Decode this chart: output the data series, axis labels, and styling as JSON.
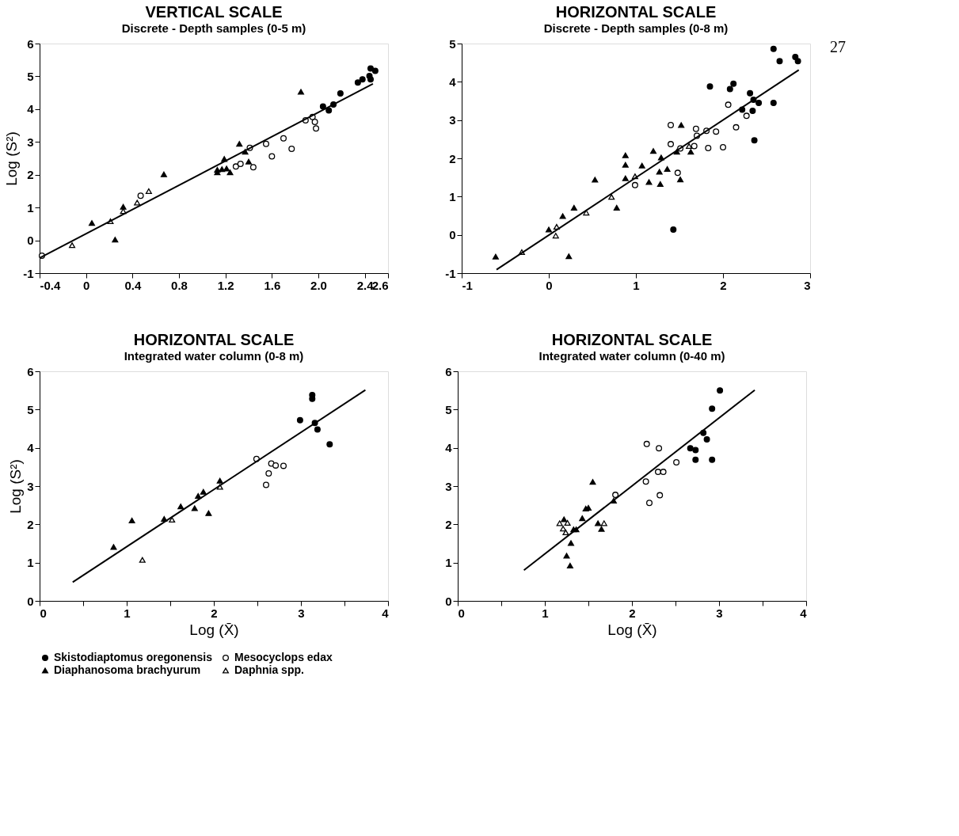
{
  "chart_data": [
    {
      "type": "scatter",
      "title": "VERTICAL SCALE",
      "subtitle": "Discrete - Depth samples (0-5 m)",
      "ylabel": "Log (S²)",
      "legend": "bottom",
      "xlim": [
        -0.4,
        2.6
      ],
      "xticks": [
        -0.4,
        0,
        0.4,
        0.8,
        1.2,
        1.6,
        {
          "value": 2,
          "label": "2.0"
        },
        2.4,
        2.6
      ],
      "ylim": [
        -1,
        6
      ],
      "yticks": [
        -1,
        0,
        1,
        2,
        3,
        4,
        5,
        6
      ],
      "series": [
        {
          "name": "Skistodiaptomus oregonensis",
          "color": "#000000",
          "marker": "circle",
          "x": [
            2.04,
            2.09,
            2.13,
            2.19,
            2.34,
            2.38,
            2.44,
            2.45,
            2.45,
            2.49
          ],
          "values": [
            4.08,
            3.96,
            4.14,
            4.48,
            4.81,
            4.91,
            5.01,
            4.91,
            5.24,
            5.17
          ]
        },
        {
          "name": "Mesocyclops edax",
          "color": "#ffffff",
          "marker": "circle",
          "x": [
            -0.38,
            1.89,
            1.95,
            1.97,
            1.98,
            1.41,
            1.44,
            1.29,
            1.33,
            1.55,
            1.6,
            1.7,
            1.77,
            0.47
          ],
          "values": [
            -0.47,
            3.66,
            3.76,
            3.61,
            3.41,
            2.82,
            2.23,
            2.25,
            2.33,
            2.94,
            2.56,
            3.11,
            2.79,
            1.36
          ]
        },
        {
          "name": "Diaphanosoma brachyurum",
          "color": "#000000",
          "marker": "triangle",
          "x": [
            0.05,
            0.25,
            0.67,
            1.13,
            1.13,
            1.19,
            1.17,
            1.21,
            1.24,
            1.32,
            1.4,
            1.37,
            1.85,
            0.32
          ],
          "values": [
            0.53,
            0.02,
            2.01,
            2.07,
            2.15,
            2.48,
            2.17,
            2.19,
            2.07,
            2.94,
            2.4,
            2.7,
            4.53,
            1.02
          ]
        },
        {
          "name": "Daphnia spp.",
          "color": "#ffffff",
          "marker": "triangle",
          "x": [
            -0.12,
            0.21,
            0.32,
            0.44,
            0.54
          ],
          "values": [
            -0.15,
            0.58,
            0.89,
            1.15,
            1.5
          ]
        },
        {
          "type": "line",
          "color": "#000000",
          "x": [
            -0.4,
            2.47
          ],
          "values": [
            -0.54,
            4.77
          ]
        }
      ]
    },
    {
      "type": "scatter",
      "title": "HORIZONTAL SCALE",
      "subtitle": "Discrete - Depth samples (0-8 m)",
      "legend": "bottom",
      "annotations": [
        "27"
      ],
      "xlim": [
        -1,
        3
      ],
      "xticks": [
        -1,
        0,
        1,
        2,
        3
      ],
      "ylim": [
        -1,
        5
      ],
      "yticks": [
        -1,
        0,
        1,
        2,
        3,
        4,
        5
      ],
      "series": [
        {
          "name": "Skistodiaptomus oregonensis",
          "color": "#000000",
          "marker": "circle",
          "x": [
            2.58,
            2.65,
            2.83,
            2.86,
            1.85,
            2.08,
            2.12,
            2.31,
            2.35,
            2.41,
            2.58,
            2.34,
            2.22,
            2.36,
            1.43
          ],
          "values": [
            4.86,
            4.54,
            4.65,
            4.54,
            3.88,
            3.81,
            3.95,
            3.7,
            3.53,
            3.45,
            3.45,
            3.24,
            3.27,
            2.47,
            0.14
          ]
        },
        {
          "name": "Mesocyclops edax",
          "color": "#ffffff",
          "marker": "circle",
          "x": [
            1.4,
            1.4,
            1.48,
            0.99,
            1.51,
            1.67,
            1.69,
            1.7,
            1.81,
            1.83,
            1.92,
            2.0,
            2.06,
            2.15,
            2.27
          ],
          "values": [
            2.87,
            2.37,
            1.62,
            1.3,
            2.26,
            2.32,
            2.77,
            2.59,
            2.72,
            2.27,
            2.7,
            2.29,
            3.4,
            2.81,
            3.11
          ]
        },
        {
          "name": "Diaphanosoma brachyurum",
          "color": "#000000",
          "marker": "triangle",
          "x": [
            -0.61,
            0.23,
            0.16,
            0.29,
            0.53,
            0.78,
            0.88,
            0.88,
            0.88,
            1.07,
            1.15,
            1.2,
            1.27,
            1.28,
            1.29,
            1.36,
            1.51,
            1.52,
            1.63,
            1.47,
            0.0
          ],
          "values": [
            -0.57,
            -0.56,
            0.49,
            0.71,
            1.44,
            0.71,
            2.08,
            1.83,
            1.48,
            1.81,
            1.38,
            2.19,
            1.65,
            1.33,
            2.02,
            1.72,
            1.45,
            2.87,
            2.17,
            2.17,
            0.14
          ]
        },
        {
          "name": "Daphnia spp.",
          "color": "#ffffff",
          "marker": "triangle",
          "x": [
            -0.31,
            0.09,
            0.08,
            0.43,
            0.72,
            0.99,
            1.61
          ],
          "values": [
            -0.45,
            0.21,
            -0.02,
            0.58,
            0.99,
            1.53,
            2.32
          ]
        },
        {
          "type": "line",
          "color": "#000000",
          "x": [
            -0.6,
            2.87
          ],
          "values": [
            -0.91,
            4.31
          ]
        }
      ]
    },
    {
      "type": "scatter",
      "title": "HORIZONTAL SCALE",
      "subtitle": "Integrated water column (0-8 m)",
      "xlabel": "Log (X̄)",
      "ylabel": "Log (S²)",
      "legend": "bottom",
      "xlim": [
        0,
        4
      ],
      "xticks": [
        0,
        {
          "value": 0.5,
          "label": null
        },
        1,
        {
          "value": 1.5,
          "label": null
        },
        2,
        {
          "value": 2.5,
          "label": null
        },
        3,
        {
          "value": 3.5,
          "label": null
        },
        4
      ],
      "ylim": [
        0,
        6
      ],
      "yticks": [
        0,
        1,
        2,
        3,
        4,
        5,
        6
      ],
      "series": [
        {
          "name": "Skistodiaptomus oregonensis",
          "color": "#000000",
          "marker": "circle",
          "x": [
            2.99,
            3.13,
            3.13,
            3.16,
            3.19,
            3.33
          ],
          "values": [
            4.72,
            5.38,
            5.28,
            4.65,
            4.48,
            4.09
          ]
        },
        {
          "name": "Mesocyclops edax",
          "color": "#ffffff",
          "marker": "circle",
          "x": [
            2.49,
            2.6,
            2.63,
            2.66,
            2.71,
            2.8
          ],
          "values": [
            3.71,
            3.03,
            3.33,
            3.59,
            3.54,
            3.53
          ]
        },
        {
          "name": "Diaphanosoma brachyurum",
          "color": "#000000",
          "marker": "triangle",
          "x": [
            0.85,
            1.06,
            1.43,
            1.62,
            1.82,
            1.88,
            1.94,
            2.07,
            1.78
          ],
          "values": [
            1.41,
            2.1,
            2.14,
            2.47,
            2.74,
            2.85,
            2.29,
            3.14,
            2.42
          ]
        },
        {
          "name": "Daphnia spp.",
          "color": "#ffffff",
          "marker": "triangle",
          "x": [
            1.18,
            1.52,
            2.07
          ],
          "values": [
            1.07,
            2.12,
            2.98
          ]
        },
        {
          "type": "line",
          "color": "#000000",
          "x": [
            0.38,
            3.74
          ],
          "values": [
            0.49,
            5.51
          ]
        }
      ]
    },
    {
      "type": "scatter",
      "title": "HORIZONTAL SCALE",
      "subtitle": "Integrated water column (0-40 m)",
      "xlabel": "Log (X̄)",
      "legend": "bottom",
      "xlim": [
        0,
        4
      ],
      "xticks": [
        0,
        {
          "value": 0.5,
          "label": null
        },
        1,
        {
          "value": 1.5,
          "label": null
        },
        2,
        {
          "value": 2.5,
          "label": null
        },
        3,
        {
          "value": 3.5,
          "label": null
        },
        4
      ],
      "ylim": [
        0,
        6
      ],
      "yticks": [
        0,
        1,
        2,
        3,
        4,
        5,
        6
      ],
      "series": [
        {
          "name": "Skistodiaptomus oregonensis",
          "color": "#000000",
          "marker": "circle",
          "x": [
            3.01,
            2.92,
            2.82,
            2.86,
            2.67,
            2.73,
            2.73,
            2.92
          ],
          "values": [
            5.5,
            5.02,
            4.39,
            4.22,
            3.99,
            3.94,
            3.69,
            3.69
          ]
        },
        {
          "name": "Mesocyclops edax",
          "color": "#ffffff",
          "marker": "circle",
          "x": [
            2.17,
            2.31,
            2.51,
            2.3,
            2.36,
            2.16,
            2.2,
            2.32,
            1.81
          ],
          "values": [
            4.1,
            3.99,
            3.62,
            3.37,
            3.37,
            3.12,
            2.56,
            2.76,
            2.77
          ]
        },
        {
          "name": "Diaphanosoma brachyurum",
          "color": "#000000",
          "marker": "triangle",
          "x": [
            1.55,
            1.47,
            1.5,
            1.43,
            1.33,
            1.36,
            1.3,
            1.25,
            1.29,
            1.61,
            1.65,
            1.22,
            1.79
          ],
          "values": [
            3.11,
            2.41,
            2.43,
            2.16,
            1.87,
            1.87,
            1.51,
            1.18,
            0.92,
            2.03,
            1.88,
            2.13,
            2.62
          ]
        },
        {
          "name": "Daphnia spp.",
          "color": "#ffffff",
          "marker": "triangle",
          "x": [
            1.17,
            1.26,
            1.21,
            1.24,
            1.68
          ],
          "values": [
            2.03,
            2.04,
            1.89,
            1.79,
            2.03
          ]
        },
        {
          "type": "line",
          "color": "#000000",
          "x": [
            0.76,
            3.41
          ],
          "values": [
            0.8,
            5.51
          ]
        }
      ]
    }
  ]
}
